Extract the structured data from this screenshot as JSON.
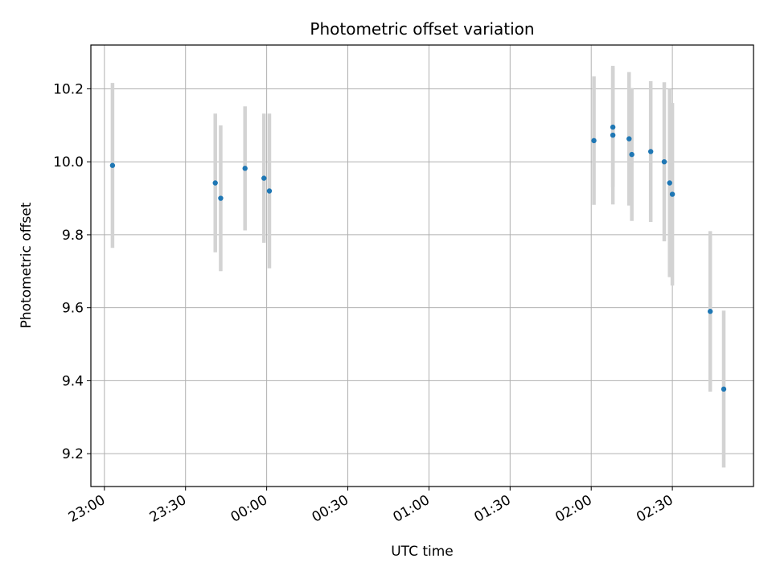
{
  "chart_data": {
    "type": "scatter",
    "title": "Photometric offset variation",
    "xlabel": "UTC time",
    "ylabel": "Photometric offset",
    "grid": true,
    "x_axis": {
      "kind": "time",
      "range": [
        "22:55",
        "03:00"
      ],
      "ticks": [
        "23:00",
        "23:30",
        "00:00",
        "00:30",
        "01:00",
        "01:30",
        "02:00",
        "02:30"
      ],
      "tick_rotation": 30
    },
    "y_axis": {
      "range": [
        9.11,
        10.32
      ],
      "ticks": [
        "9.2",
        "9.4",
        "9.6",
        "9.8",
        "10.0",
        "10.2"
      ]
    },
    "colors": {
      "marker": "#1f77b4",
      "errorbar": "#d3d3d3",
      "grid": "#b0b0b0"
    },
    "points": [
      {
        "time": "23:03",
        "y": 9.99,
        "err": 0.226
      },
      {
        "time": "23:41",
        "y": 9.942,
        "err": 0.19
      },
      {
        "time": "23:43",
        "y": 9.9,
        "err": 0.2
      },
      {
        "time": "23:52",
        "y": 9.982,
        "err": 0.17
      },
      {
        "time": "23:59",
        "y": 9.955,
        "err": 0.177
      },
      {
        "time": "00:01",
        "y": 9.92,
        "err": 0.212
      },
      {
        "time": "02:01",
        "y": 10.058,
        "err": 0.176
      },
      {
        "time": "02:08",
        "y": 10.095,
        "err": 0.164
      },
      {
        "time": "02:08",
        "y": 10.073,
        "err": 0.19
      },
      {
        "time": "02:14",
        "y": 10.063,
        "err": 0.183
      },
      {
        "time": "02:15",
        "y": 10.02,
        "err": 0.182
      },
      {
        "time": "02:22",
        "y": 10.028,
        "err": 0.193
      },
      {
        "time": "02:27",
        "y": 10.0,
        "err": 0.218
      },
      {
        "time": "02:29",
        "y": 9.942,
        "err": 0.258
      },
      {
        "time": "02:30",
        "y": 9.911,
        "err": 0.25
      },
      {
        "time": "02:44",
        "y": 9.59,
        "err": 0.22
      },
      {
        "time": "02:49",
        "y": 9.377,
        "err": 0.215
      }
    ]
  }
}
